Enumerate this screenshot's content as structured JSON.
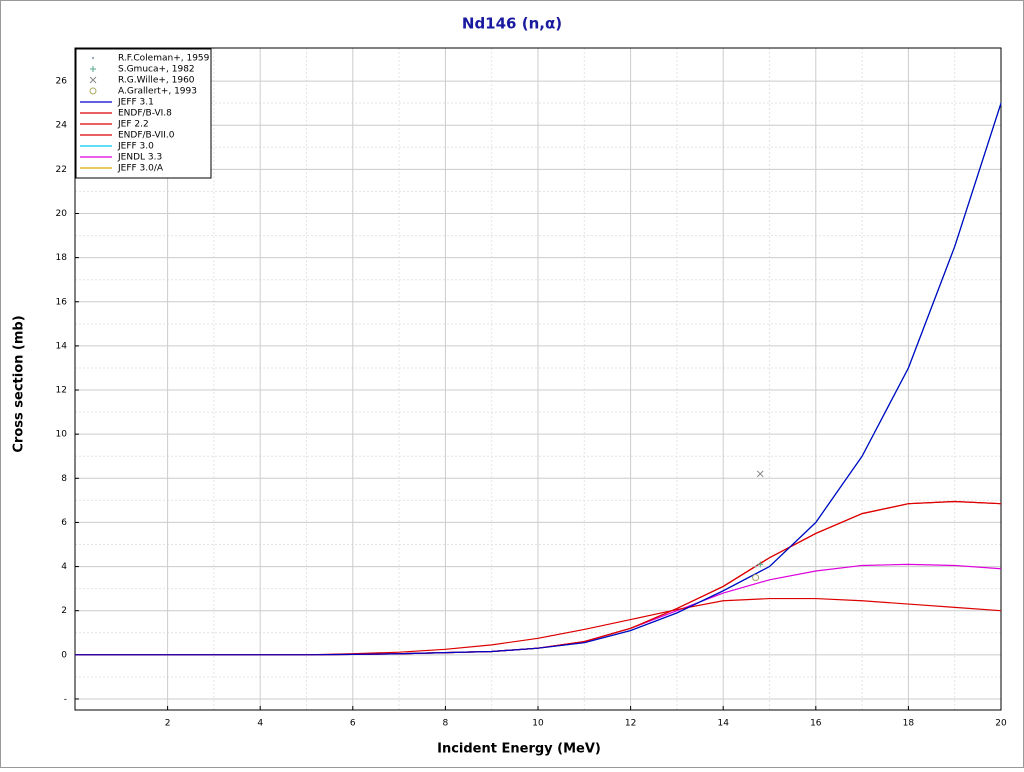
{
  "chart_data": {
    "type": "line",
    "title": "Nd146 (n,α)",
    "x_label": "Incident Energy (MeV)",
    "y_label": "Cross section (mb)",
    "xlim": [
      0,
      20
    ],
    "ylim": [
      -2.5,
      27.5
    ],
    "xticks": [
      2,
      4,
      6,
      8,
      10,
      12,
      14,
      16,
      18,
      20
    ],
    "yticks": [
      {
        "value": -2,
        "label": "-"
      },
      0,
      2,
      4,
      6,
      8,
      10,
      12,
      14,
      16,
      18,
      20,
      22,
      24,
      26
    ],
    "grid": true,
    "legend": "upper left",
    "x": [
      0,
      1,
      2,
      3,
      4,
      5,
      6,
      7,
      8,
      9,
      10,
      11,
      12,
      13,
      14,
      15,
      16,
      17,
      18,
      19,
      20
    ],
    "series": [
      {
        "name": "R.F.Coleman+, 1959",
        "color": "#9aaabb",
        "marker": "dot",
        "x": [
          14.7
        ],
        "values": [
          4.0
        ]
      },
      {
        "name": "S.Gmuca+, 1982",
        "color": "#55aa88",
        "marker": "plus",
        "x": [
          14.8
        ],
        "values": [
          4.1
        ]
      },
      {
        "name": "R.G.Wille+, 1960",
        "color": "#888888",
        "marker": "cross",
        "x": [
          14.8
        ],
        "values": [
          8.2
        ]
      },
      {
        "name": "A.Grallert+, 1993",
        "color": "#aaaa66",
        "marker": "circle",
        "x": [
          14.7
        ],
        "values": [
          3.5
        ]
      },
      {
        "name": "JEFF 3.1",
        "color": "#0000cc",
        "values": [
          0,
          0,
          0,
          0,
          0,
          0,
          0.02,
          0.05,
          0.1,
          0.15,
          0.3,
          0.55,
          1.1,
          1.9,
          2.9,
          4.0,
          6.0,
          9.0,
          13.0,
          18.5,
          25.0
        ]
      },
      {
        "name": "ENDF/B-VI.8",
        "color": "#dd0000",
        "values": [
          0,
          0,
          0,
          0,
          0,
          0,
          0.02,
          0.05,
          0.1,
          0.15,
          0.3,
          0.6,
          1.2,
          2.1,
          3.1,
          4.4,
          5.5,
          6.4,
          6.85,
          6.95,
          6.85
        ]
      },
      {
        "name": "JEF 2.2",
        "color": "#dd0000",
        "values": [
          0,
          0,
          0,
          0,
          0,
          0,
          0.02,
          0.05,
          0.1,
          0.15,
          0.3,
          0.6,
          1.2,
          2.1,
          3.1,
          4.4,
          5.5,
          6.4,
          6.85,
          6.95,
          6.85
        ]
      },
      {
        "name": "ENDF/B-VII.0",
        "color": "#dd0000",
        "values": [
          0,
          0,
          0,
          0,
          0,
          0,
          0.05,
          0.12,
          0.25,
          0.45,
          0.75,
          1.15,
          1.6,
          2.05,
          2.45,
          2.55,
          2.55,
          2.45,
          2.3,
          2.15,
          2.0
        ]
      },
      {
        "name": "JEFF 3.0",
        "color": "#00ccee",
        "values": [
          0,
          0,
          0,
          0,
          0,
          0,
          0.02,
          0.05,
          0.1,
          0.15,
          0.3,
          0.55,
          1.1,
          1.9,
          2.9,
          4.0,
          6.0,
          9.0,
          13.0,
          18.5,
          25.0
        ]
      },
      {
        "name": "JENDL 3.3",
        "color": "#dd00dd",
        "values": [
          0,
          0,
          0,
          0,
          0,
          0,
          0.02,
          0.05,
          0.1,
          0.15,
          0.3,
          0.6,
          1.2,
          2.0,
          2.8,
          3.4,
          3.8,
          4.05,
          4.1,
          4.05,
          3.9
        ]
      },
      {
        "name": "JEFF 3.0/A",
        "color": "#ddaa00",
        "values": [
          0,
          0,
          0,
          0,
          0,
          0,
          0.02,
          0.05,
          0.1,
          0.15,
          0.3,
          0.55,
          1.1,
          1.9,
          2.9,
          4.0,
          6.0,
          9.0,
          13.0,
          18.5,
          25.0
        ]
      }
    ]
  }
}
